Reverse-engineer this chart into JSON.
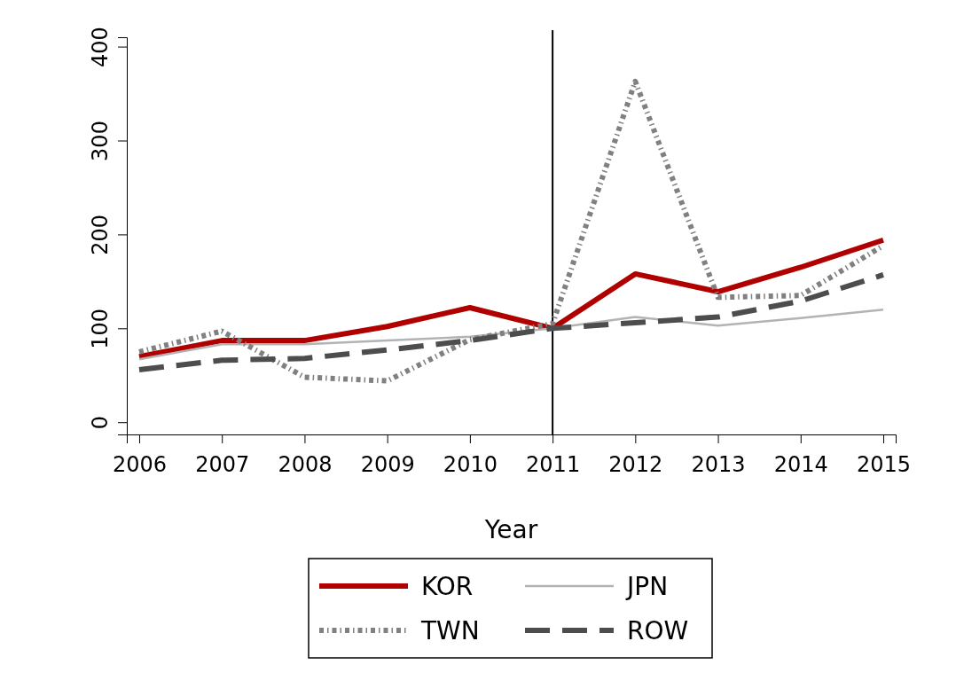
{
  "chart_data": {
    "type": "line",
    "xlabel": "Year",
    "x": [
      2006,
      2007,
      2008,
      2009,
      2010,
      2011,
      2012,
      2013,
      2014,
      2015
    ],
    "xlim": [
      2005.85,
      2015.15
    ],
    "xticks": [
      2006,
      2007,
      2008,
      2009,
      2010,
      2011,
      2012,
      2013,
      2014,
      2015
    ],
    "ylim": [
      -13,
      410
    ],
    "yticks": [
      0,
      100,
      200,
      300,
      400
    ],
    "grid": false,
    "legend": "bottom",
    "marker": "none",
    "ref_lines": [
      {
        "axis": "x",
        "value": 2011,
        "color": "#000000",
        "line_style": "solid"
      }
    ],
    "series": [
      {
        "name": "KOR",
        "color": "#b00000",
        "line_style": "solid",
        "values": [
          70,
          87,
          87,
          102,
          122,
          100,
          158,
          139,
          165,
          194
        ]
      },
      {
        "name": "JPN",
        "color": "#b3b3b3",
        "line_style": "solid",
        "values": [
          67,
          83,
          83,
          87,
          91,
          100,
          112,
          103,
          111,
          120
        ]
      },
      {
        "name": "TWN",
        "color": "#808080",
        "line_style": "dotted",
        "values": [
          75,
          97,
          48,
          44,
          88,
          105,
          363,
          133,
          135,
          188
        ]
      },
      {
        "name": "ROW",
        "color": "#4d4d4d",
        "line_style": "dashed",
        "values": [
          56,
          66,
          68,
          77,
          87,
          100,
          106,
          112,
          129,
          157
        ]
      }
    ]
  }
}
